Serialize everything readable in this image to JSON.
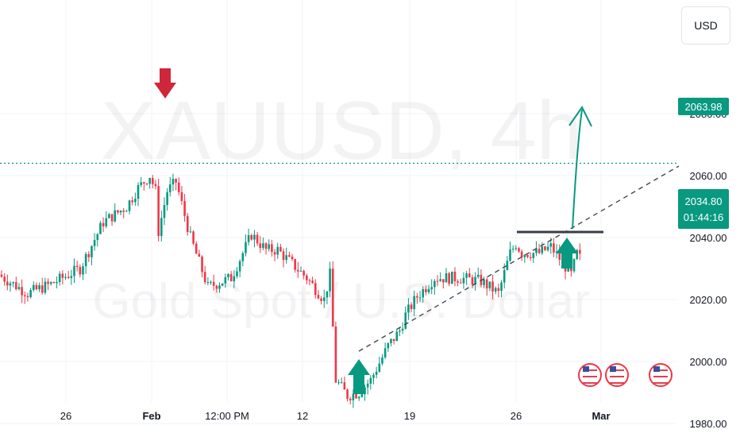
{
  "currency_button": "USD",
  "watermark": {
    "line1": "XAUUSD, 4h",
    "line2": "Gold Spot / U.S. Dollar"
  },
  "colors": {
    "up": "#089981",
    "down": "#f23645",
    "bg": "#ffffff",
    "grid": "#f0f3fa",
    "text": "#131722",
    "trendline": "#434651",
    "support": "#3a3d45"
  },
  "price_tags": {
    "target": "2063.98",
    "last_price": "2034.80",
    "countdown": "01:44:16"
  },
  "icons": [
    "us-flag-event-icon",
    "us-flag-event-icon",
    "us-flag-event-icon"
  ],
  "chart_data": {
    "type": "candlestick",
    "title": "",
    "ylim": [
      1972,
      2090
    ],
    "y_ticks": [
      "2080.00",
      "2060.00",
      "2040.00",
      "2020.00",
      "2000.00",
      "1980.00"
    ],
    "x_ticks": [
      "26",
      "Feb",
      "12:00 PM",
      "12",
      "19",
      "26",
      "Mar"
    ],
    "grid": true,
    "annotations": [
      {
        "kind": "horizontal-line",
        "style": "dotted",
        "y": 2063.98
      },
      {
        "kind": "down-arrow",
        "color": "down",
        "at": "Feb",
        "y": 2064
      },
      {
        "kind": "up-arrow",
        "color": "up",
        "near": "15",
        "y": 1984
      },
      {
        "kind": "up-arrow",
        "color": "up",
        "near": "29",
        "y": 2024
      },
      {
        "kind": "support-line",
        "y": 2024
      },
      {
        "kind": "trendline",
        "style": "dashed"
      },
      {
        "kind": "projection-arrow",
        "to_y": 2064
      }
    ],
    "anchors": [
      {
        "x": 0,
        "y": 2028
      },
      {
        "x": 10,
        "y": 2022
      },
      {
        "x": 18,
        "y": 2025
      },
      {
        "x": 28,
        "y": 2030
      },
      {
        "x": 36,
        "y": 2045
      },
      {
        "x": 44,
        "y": 2050
      },
      {
        "x": 48,
        "y": 2056
      },
      {
        "x": 52,
        "y": 2060
      },
      {
        "x": 54,
        "y": 2055
      },
      {
        "x": 55,
        "y": 2042
      },
      {
        "x": 58,
        "y": 2055
      },
      {
        "x": 61,
        "y": 2058
      },
      {
        "x": 66,
        "y": 2040
      },
      {
        "x": 72,
        "y": 2024
      },
      {
        "x": 80,
        "y": 2027
      },
      {
        "x": 87,
        "y": 2041
      },
      {
        "x": 92,
        "y": 2036
      },
      {
        "x": 96,
        "y": 2036
      },
      {
        "x": 106,
        "y": 2027
      },
      {
        "x": 112,
        "y": 2020
      },
      {
        "x": 114,
        "y": 2028
      },
      {
        "x": 116,
        "y": 1994
      },
      {
        "x": 120,
        "y": 1989
      },
      {
        "x": 124,
        "y": 1990
      },
      {
        "x": 128,
        "y": 1994
      },
      {
        "x": 134,
        "y": 2005
      },
      {
        "x": 138,
        "y": 2010
      },
      {
        "x": 140,
        "y": 2015
      },
      {
        "x": 144,
        "y": 2021
      },
      {
        "x": 150,
        "y": 2027
      },
      {
        "x": 158,
        "y": 2027
      },
      {
        "x": 166,
        "y": 2026
      },
      {
        "x": 172,
        "y": 2022
      },
      {
        "x": 176,
        "y": 2035
      },
      {
        "x": 178,
        "y": 2038
      },
      {
        "x": 180,
        "y": 2035
      },
      {
        "x": 186,
        "y": 2035
      },
      {
        "x": 190,
        "y": 2037
      },
      {
        "x": 194,
        "y": 2032
      },
      {
        "x": 197,
        "y": 2028
      },
      {
        "x": 199,
        "y": 2034.8
      }
    ]
  }
}
